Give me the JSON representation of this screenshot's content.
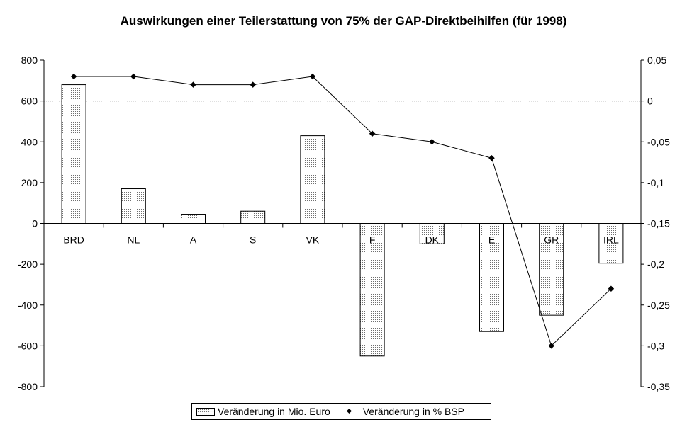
{
  "chart_data": {
    "type": "bar",
    "title": "Auswirkungen einer Teilerstattung von 75% der GAP-Direktbeihilfen (für 1998)",
    "categories": [
      "BRD",
      "NL",
      "A",
      "S",
      "VK",
      "F",
      "DK",
      "E",
      "GR",
      "IRL"
    ],
    "series": [
      {
        "name": "Veränderung in Mio. Euro",
        "type": "bar",
        "axis": "left",
        "values": [
          680,
          170,
          45,
          60,
          430,
          -650,
          -100,
          -530,
          -450,
          -195
        ]
      },
      {
        "name": "Veränderung in % BSP",
        "type": "line",
        "axis": "right",
        "values": [
          0.03,
          0.03,
          0.02,
          0.02,
          0.03,
          -0.04,
          -0.05,
          -0.07,
          -0.3,
          -0.23
        ]
      }
    ],
    "y_left": {
      "ylim": [
        -800,
        800
      ],
      "ticks": [
        "800",
        "600",
        "400",
        "200",
        "0",
        "-200",
        "-400",
        "-600",
        "-800"
      ]
    },
    "y_right": {
      "ylim": [
        -0.35,
        0.05
      ],
      "ticks": [
        "0,05",
        "0",
        "-0,05",
        "-0,1",
        "-0,15",
        "-0,2",
        "-0,25",
        "-0,3",
        "-0,35"
      ]
    },
    "reference_line": {
      "axis": "right",
      "value": 0,
      "style": "dotted"
    },
    "grid": false,
    "legend_position": "bottom"
  }
}
